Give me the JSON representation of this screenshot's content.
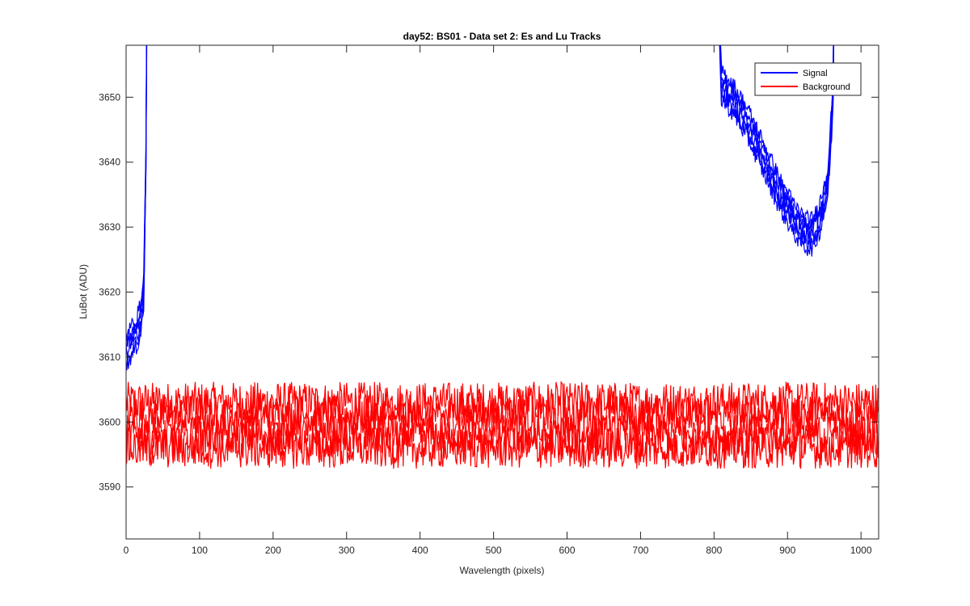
{
  "chart_data": {
    "type": "line",
    "title": "day52: BS01 - Data set 2: Es and Lu Tracks",
    "xlabel": "Wavelength (pixels)",
    "ylabel": "LuBot (ADU)",
    "xlim": [
      0,
      1024
    ],
    "ylim": [
      3582,
      3658
    ],
    "xticks": [
      0,
      100,
      200,
      300,
      400,
      500,
      600,
      700,
      800,
      900,
      1000
    ],
    "yticks": [
      3590,
      3600,
      3610,
      3620,
      3630,
      3640,
      3650
    ],
    "grid": false,
    "legend": {
      "position": "top-right",
      "entries": [
        "Signal",
        "Background"
      ]
    },
    "colors": {
      "signal": "#0000ff",
      "background": "#ff0000",
      "axis": "#262626"
    },
    "series": [
      {
        "name": "Signal",
        "color": "#0000ff",
        "tracks": 6,
        "x": [
          0,
          5,
          10,
          15,
          20,
          24,
          27,
          30,
          795,
          810,
          830,
          850,
          870,
          890,
          910,
          925,
          935,
          945,
          955,
          962,
          966
        ],
        "y": [
          3611,
          3612,
          3613,
          3614,
          3616,
          3620,
          3640,
          3700,
          3700,
          3652,
          3649,
          3645,
          3640,
          3635,
          3631,
          3629,
          3629,
          3632,
          3637,
          3650,
          3700
        ]
      },
      {
        "name": "Background",
        "color": "#ff0000",
        "tracks": 4,
        "x": [
          0,
          1023
        ],
        "levels": [
          3603,
          3601,
          3598,
          3596
        ],
        "noise": 2
      }
    ]
  }
}
